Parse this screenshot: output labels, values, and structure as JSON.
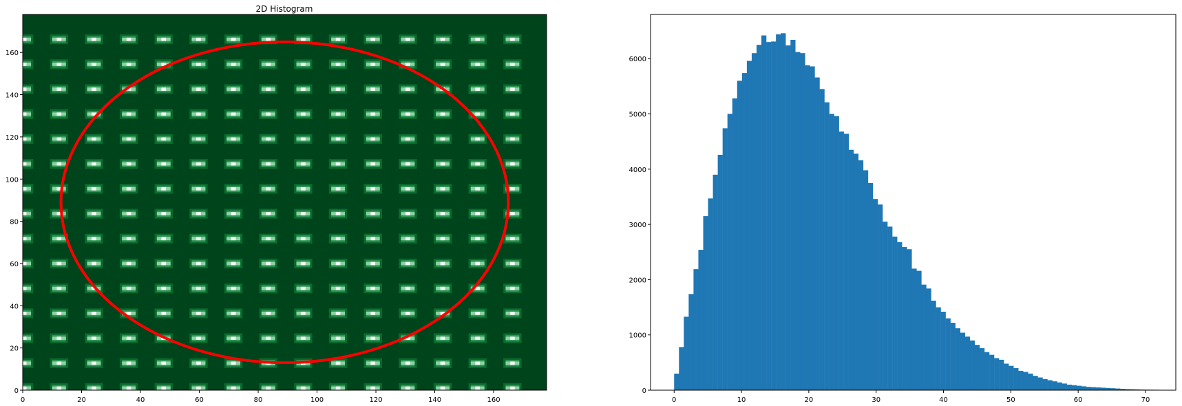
{
  "chart_data": [
    {
      "type": "heatmap",
      "title": "2D Histogram",
      "xlabel": "",
      "ylabel": "",
      "xlim": [
        0,
        178
      ],
      "ylim": [
        0,
        178
      ],
      "x_ticks": [
        0,
        20,
        40,
        60,
        80,
        100,
        120,
        140,
        160
      ],
      "y_ticks": [
        0,
        20,
        40,
        60,
        80,
        100,
        120,
        140,
        160
      ],
      "colormap": "Greens_r",
      "background_color": "#00441b",
      "grid": false,
      "ellipse": {
        "center": [
          89,
          89
        ],
        "width": 152,
        "height": 152,
        "color": "#ff0000"
      }
    },
    {
      "type": "bar",
      "title": "",
      "xlabel": "",
      "ylabel": "",
      "xlim": [
        -3.5,
        74.5
      ],
      "ylim": [
        0,
        6800
      ],
      "x_ticks": [
        0,
        10,
        20,
        30,
        40,
        50,
        60,
        70
      ],
      "y_ticks": [
        0,
        1000,
        2000,
        3000,
        4000,
        5000,
        6000
      ],
      "bin_width": 0.72,
      "bin_start": 0,
      "color": "#1f77b4",
      "grid": false,
      "values": [
        300,
        780,
        1330,
        1740,
        2190,
        2540,
        3150,
        3470,
        3900,
        4260,
        4740,
        5000,
        5280,
        5600,
        5740,
        5960,
        6100,
        6250,
        6420,
        6300,
        6310,
        6440,
        6460,
        6240,
        6340,
        6120,
        6100,
        5880,
        5860,
        5660,
        5450,
        5210,
        5000,
        4960,
        4680,
        4640,
        4350,
        4280,
        4160,
        3980,
        3750,
        3460,
        3360,
        3050,
        2960,
        2780,
        2680,
        2590,
        2550,
        2200,
        2160,
        1910,
        1840,
        1620,
        1500,
        1420,
        1300,
        1220,
        1120,
        1040,
        970,
        900,
        820,
        760,
        690,
        640,
        580,
        550,
        480,
        440,
        400,
        350,
        330,
        300,
        260,
        230,
        200,
        180,
        160,
        140,
        120,
        100,
        90,
        80,
        70,
        60,
        55,
        50,
        45,
        40,
        35,
        30,
        25,
        20,
        18,
        15,
        12,
        10,
        9,
        8
      ]
    }
  ]
}
